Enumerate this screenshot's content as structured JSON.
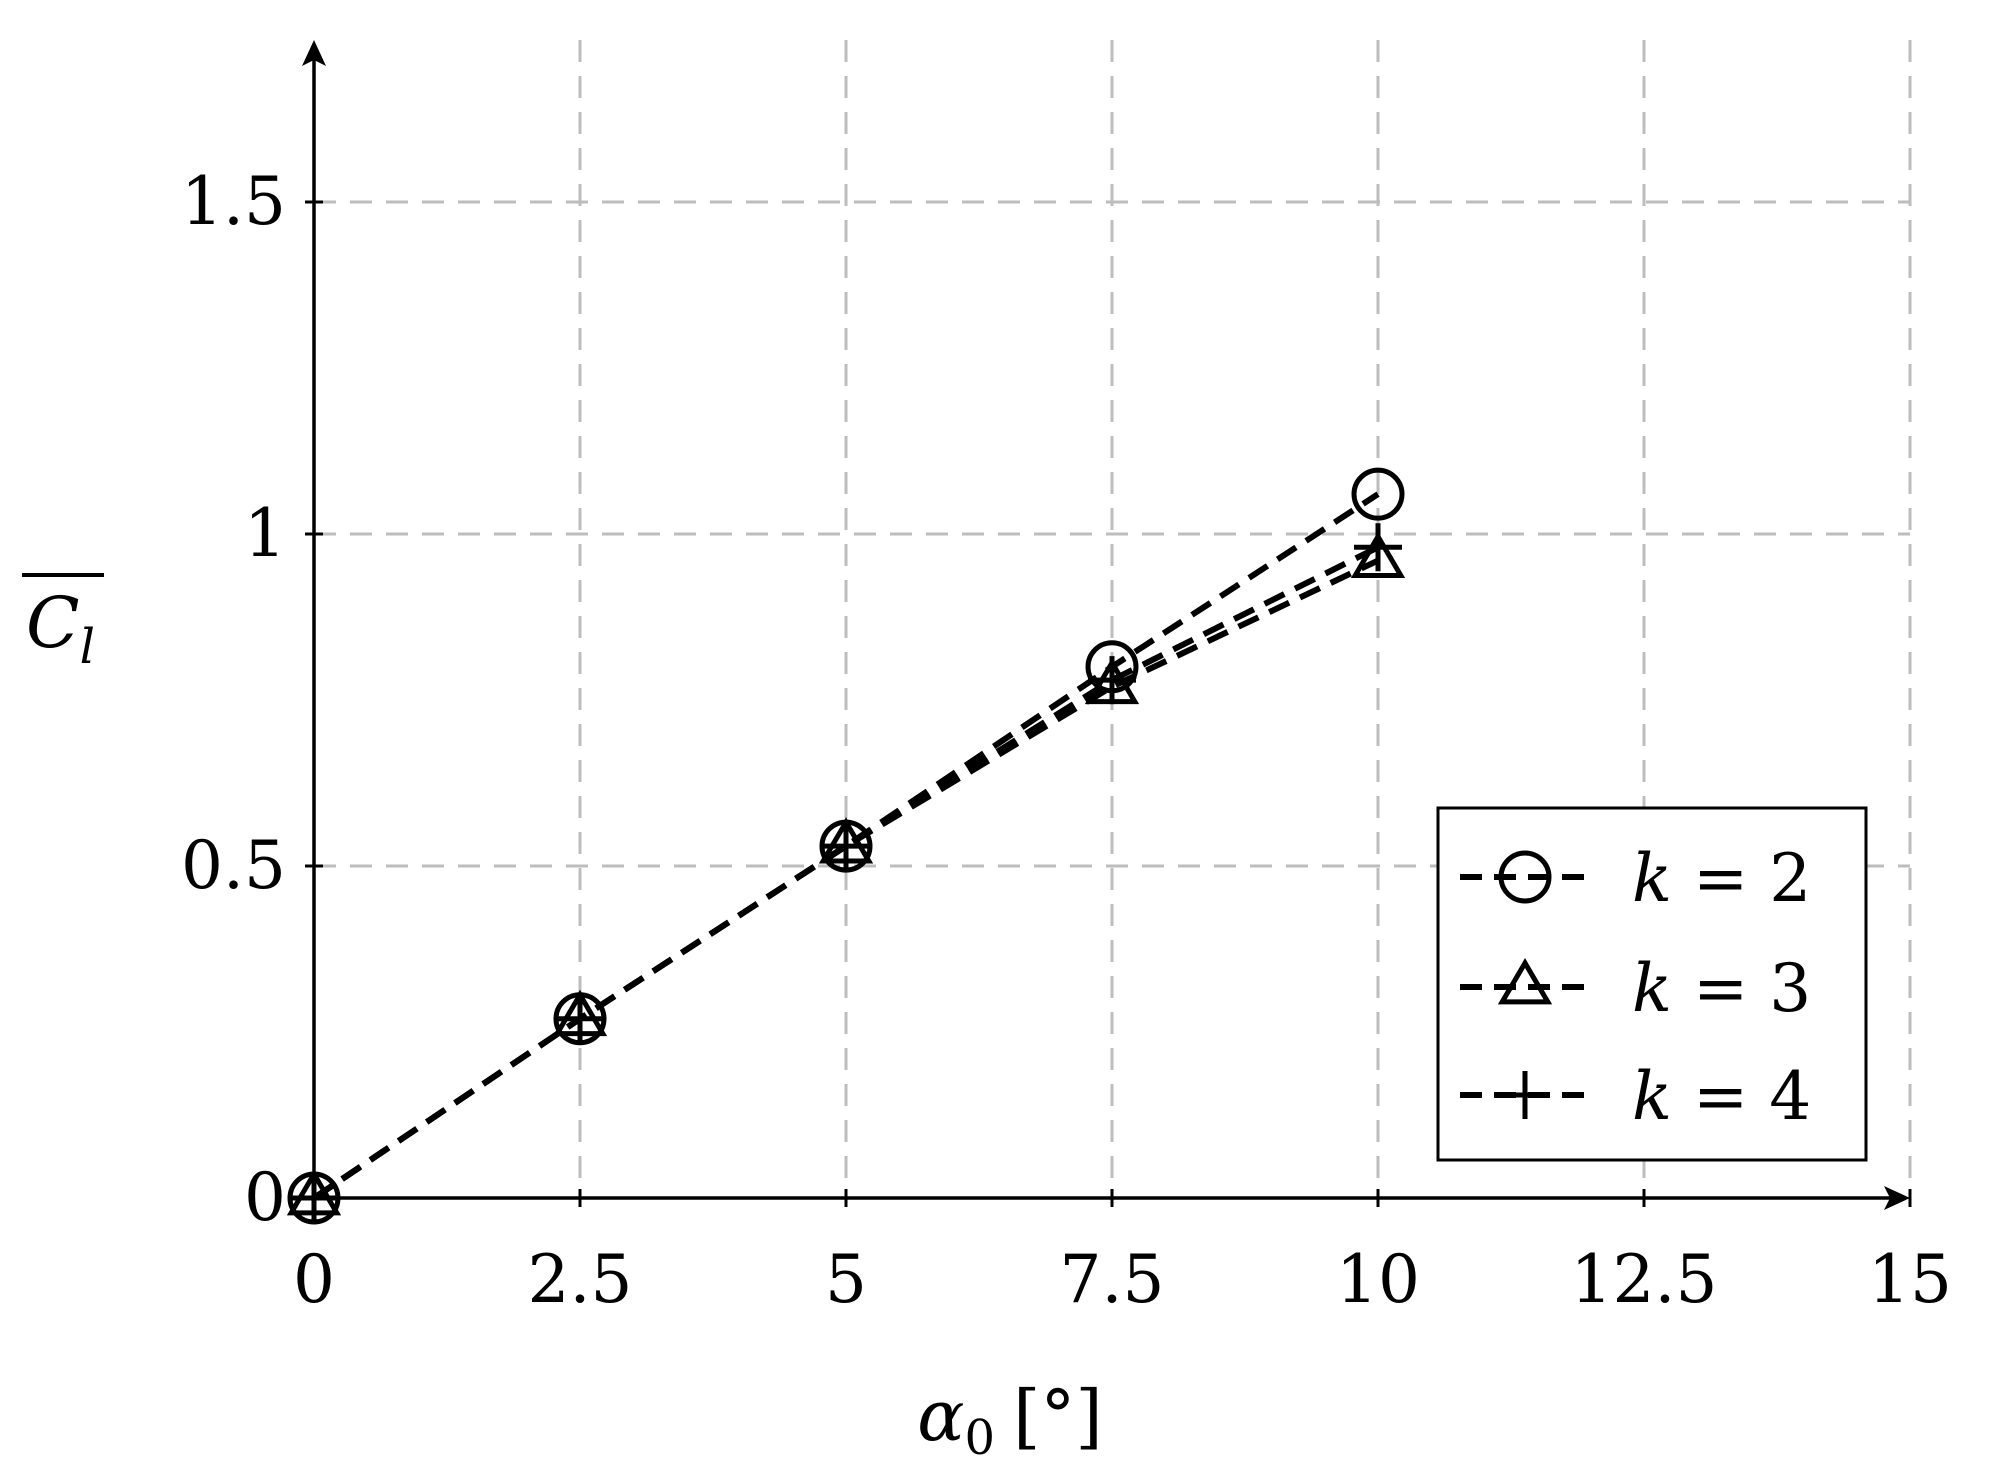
{
  "chart_data": {
    "type": "line",
    "title": "",
    "xlabel_symbol": "α",
    "xlabel_subscript": "0",
    "xlabel_unit": "[°]",
    "ylabel_symbol": "C",
    "ylabel_subscript": "l",
    "xlim": [
      0,
      15
    ],
    "ylim": [
      0,
      1.7
    ],
    "xticks": [
      0,
      2.5,
      5,
      7.5,
      10,
      12.5,
      15
    ],
    "xtick_labels": [
      "0",
      "2.5",
      "5",
      "7.5",
      "10",
      "12.5",
      "15"
    ],
    "yticks": [
      0,
      0.5,
      1,
      1.5
    ],
    "ytick_labels": [
      "0",
      "0.5",
      "1",
      "1.5"
    ],
    "grid": true,
    "legend_position": "bottom-right",
    "series": [
      {
        "name": "k = 2",
        "name_var": "k",
        "name_rest": " = 2",
        "marker": "circle",
        "x": [
          0,
          2.5,
          5,
          7.5,
          10
        ],
        "y": [
          0,
          0.27,
          0.53,
          0.8,
          1.06
        ]
      },
      {
        "name": "k = 3",
        "name_var": "k",
        "name_rest": " = 3",
        "marker": "triangle",
        "x": [
          0,
          2.5,
          5,
          7.5,
          10
        ],
        "y": [
          0,
          0.27,
          0.53,
          0.77,
          0.96
        ]
      },
      {
        "name": "k = 4",
        "name_var": "k",
        "name_rest": " = 4",
        "marker": "plus",
        "x": [
          0,
          2.5,
          5,
          7.5,
          10
        ],
        "y": [
          0,
          0.27,
          0.53,
          0.78,
          0.98
        ]
      }
    ]
  }
}
